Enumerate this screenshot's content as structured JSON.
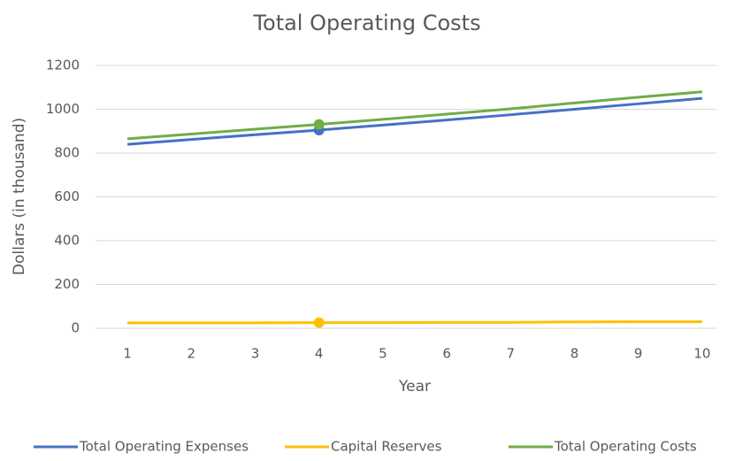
{
  "chart_data": {
    "type": "line",
    "title": "Total Operating Costs",
    "x_label": "Year",
    "y_label": "Dollars (in thousand)",
    "categories": [
      "1",
      "2",
      "3",
      "4",
      "5",
      "6",
      "7",
      "8",
      "9",
      "10"
    ],
    "series": [
      {
        "name": "Total Operating Expenses",
        "color": "#4472c4",
        "values": [
          840,
          862,
          884,
          905,
          928,
          951,
          975,
          1000,
          1025,
          1050
        ]
      },
      {
        "name": "Capital Reserves",
        "color": "#ffc000",
        "values": [
          25,
          25,
          25,
          26,
          26,
          27,
          27,
          29,
          30,
          30
        ]
      },
      {
        "name": "Total Operating Costs",
        "color": "#70ad47",
        "values": [
          865,
          887,
          909,
          931,
          954,
          978,
          1002,
          1029,
          1055,
          1080
        ]
      }
    ],
    "marker_index": 3,
    "ylim": [
      0,
      1200
    ],
    "yticks": [
      0,
      200,
      400,
      600,
      800,
      1000,
      1200
    ],
    "grid": true,
    "legend": "bottom"
  }
}
